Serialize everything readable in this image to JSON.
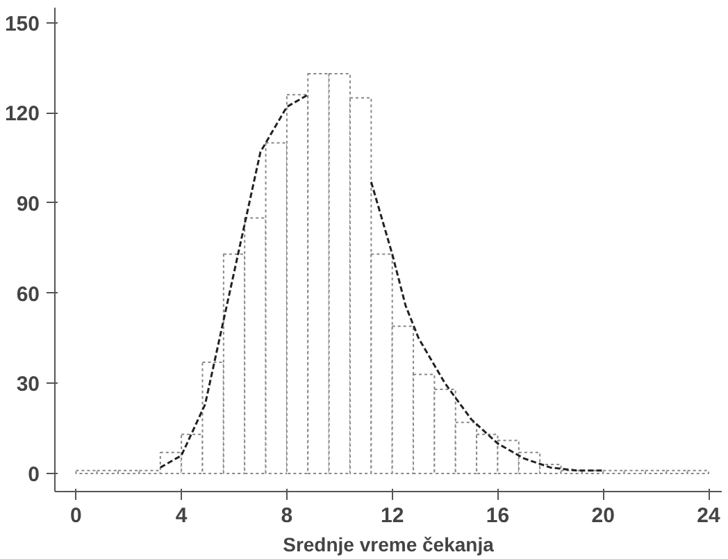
{
  "chart_data": {
    "type": "histogram",
    "xlabel": "Srednje vreme čekanja",
    "bins": [
      0,
      0.8,
      1.6,
      2.4,
      3.2,
      4.0,
      4.8,
      5.6,
      6.4,
      7.2,
      8.0,
      8.8,
      9.6,
      10.4,
      11.2,
      12.0,
      12.8,
      13.6,
      14.4,
      15.2,
      16.0,
      16.8,
      17.6,
      18.4,
      19.2,
      20.0,
      20.8,
      21.6,
      22.4,
      23.2,
      24.0
    ],
    "values": [
      1,
      1,
      1,
      1,
      7,
      13,
      37,
      73,
      85,
      110,
      126,
      133,
      133,
      125,
      73,
      49,
      33,
      28,
      17,
      13,
      11,
      7,
      3,
      1,
      1,
      1,
      1,
      1,
      1,
      1
    ],
    "color": "#ffffff",
    "series": [
      {
        "type": "line",
        "line_style": "dashed",
        "color": "#222222",
        "x": [
          3.2,
          4.0,
          4.9,
          5.6,
          6.3,
          7.0,
          8.0,
          8.8,
          null,
          11.2,
          12.0,
          12.5,
          13.0,
          14.0,
          15.0,
          16.0,
          17.0,
          18.0,
          19.0,
          20.0
        ],
        "values": [
          2,
          6,
          23,
          51,
          79,
          107,
          122,
          126,
          null,
          97,
          73,
          56,
          45,
          30,
          18,
          10,
          5,
          2,
          1,
          1
        ]
      }
    ],
    "xlim": [
      -0.8,
      24.5
    ],
    "ylim": [
      -6,
      155
    ],
    "xticks": [
      0,
      4,
      8,
      12,
      16,
      20,
      24
    ],
    "yticks": [
      0,
      30,
      60,
      90,
      120,
      150
    ],
    "grid": false
  }
}
